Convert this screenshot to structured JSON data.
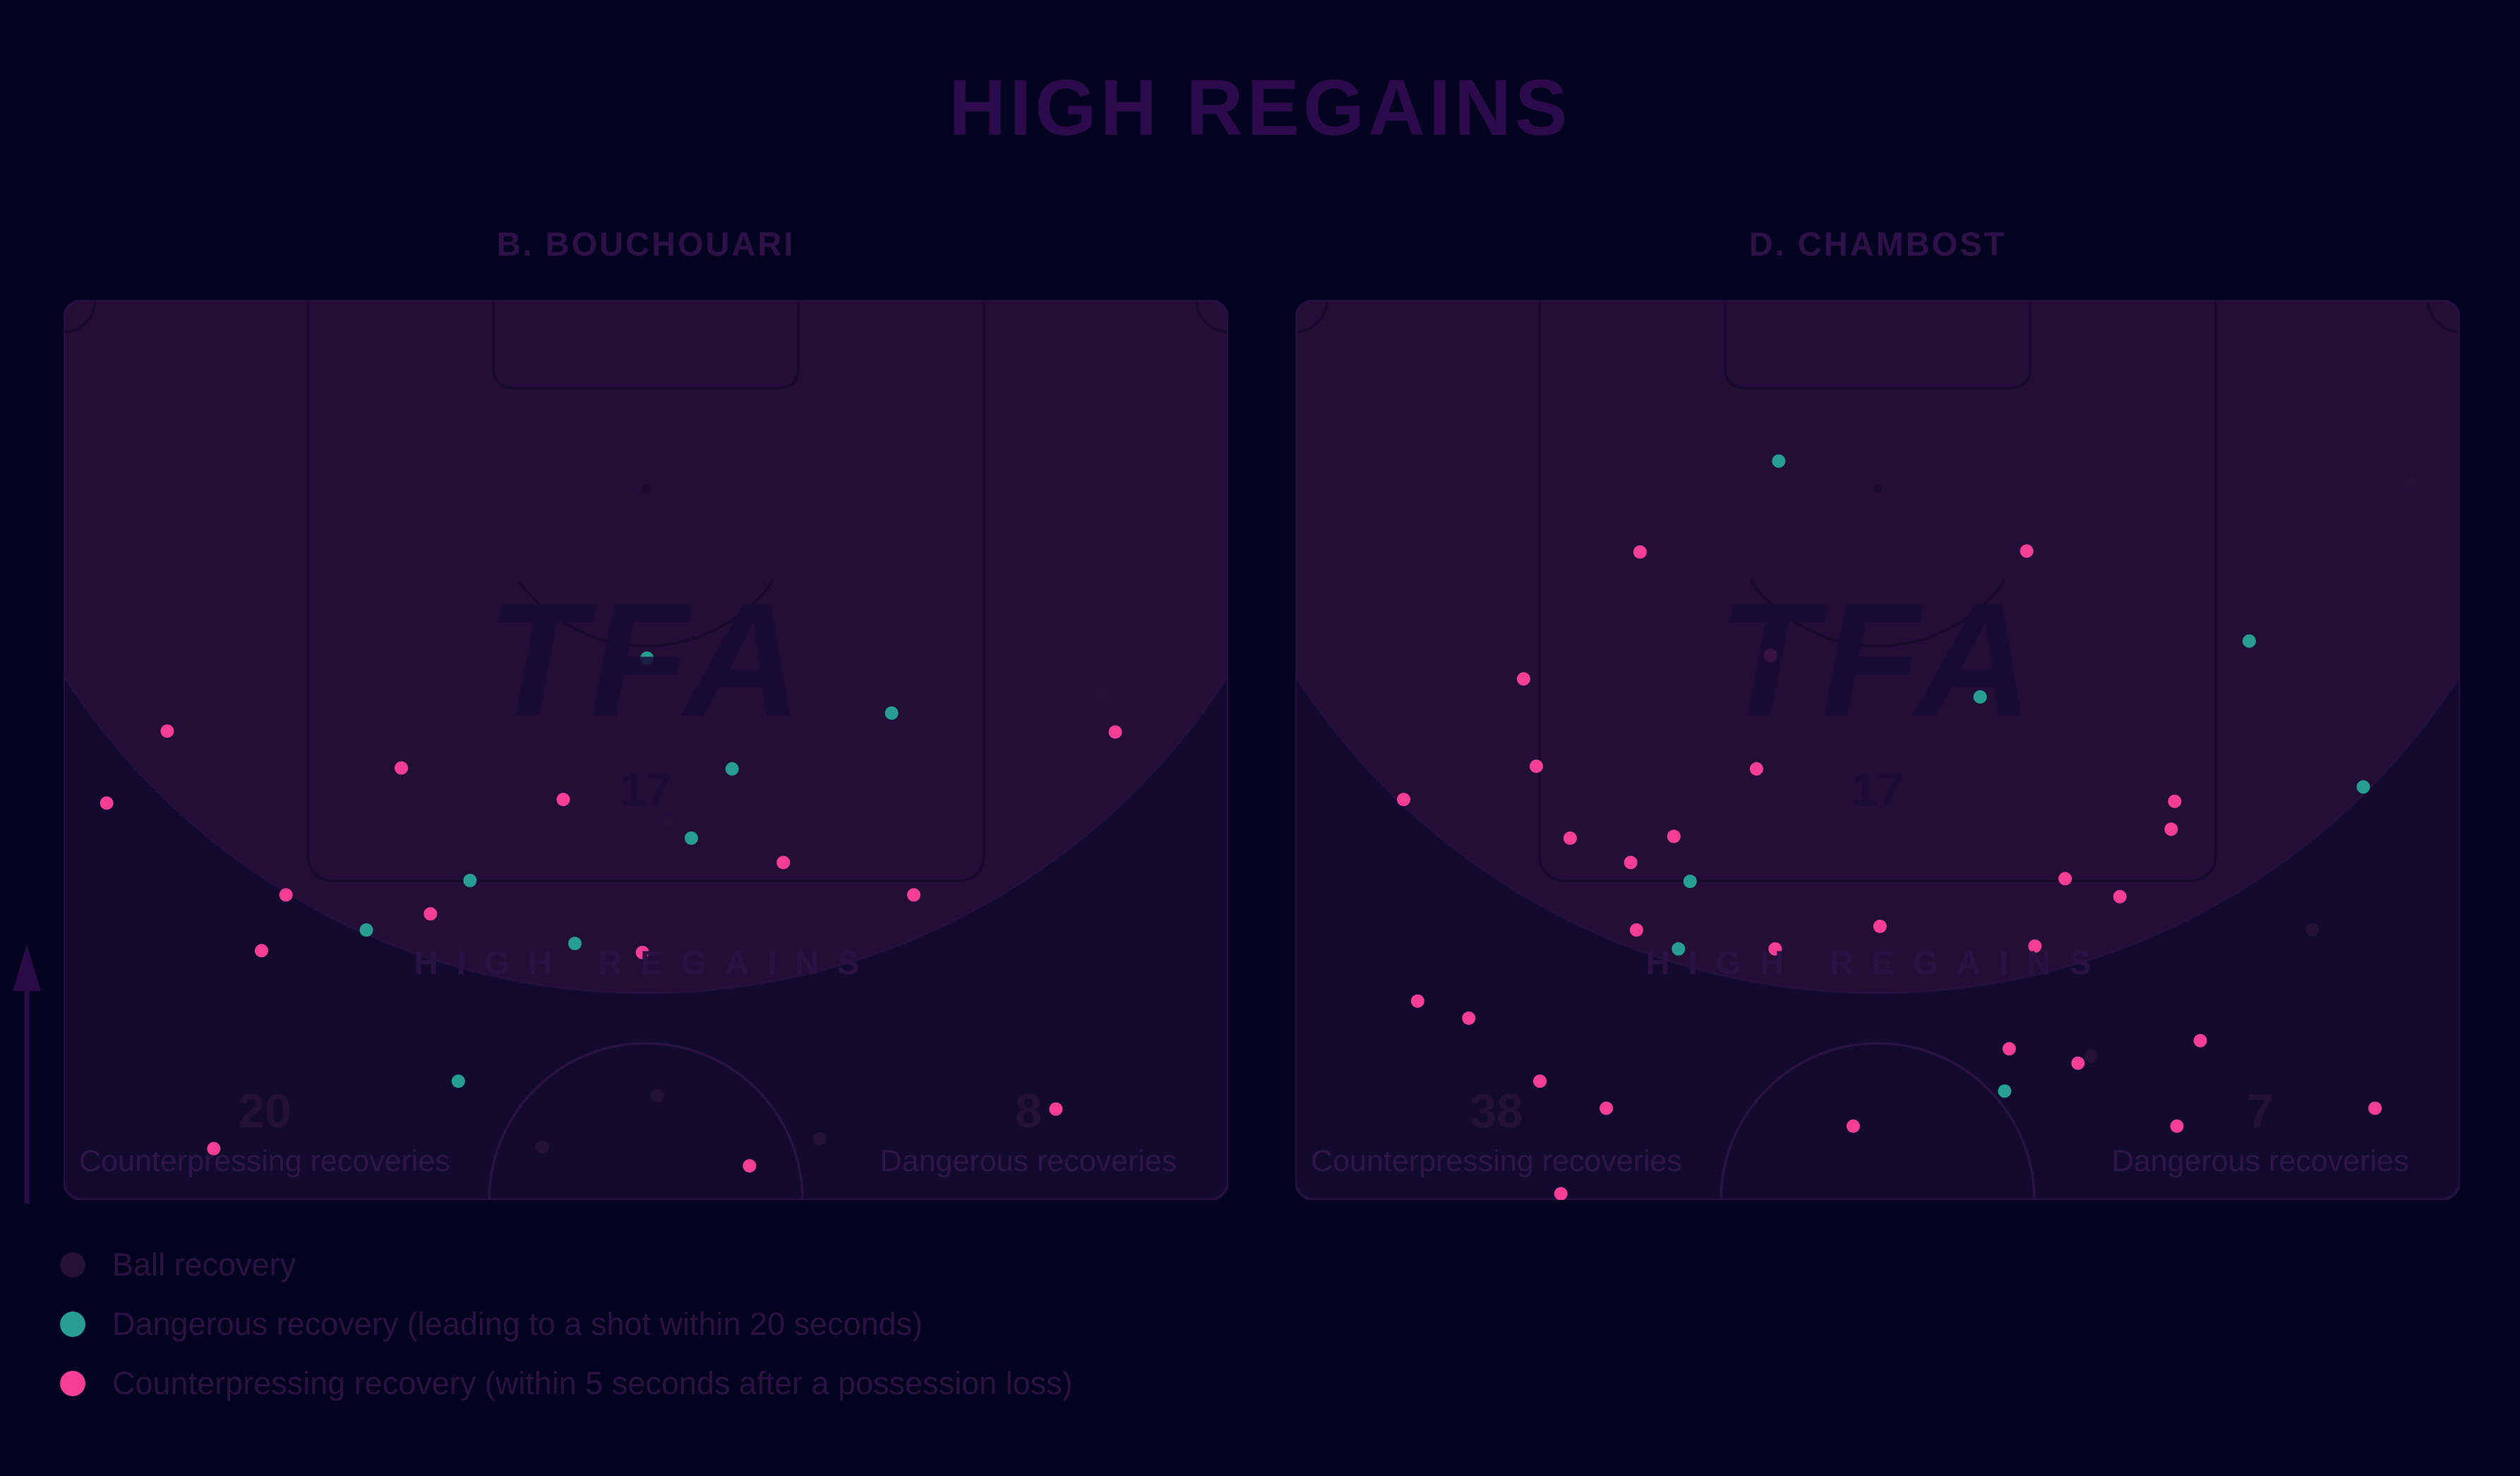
{
  "title": "HIGH REGAINS",
  "colors": {
    "background": "#050420",
    "pitch_base": "#120b2f",
    "high_zone_fill": "#230e37",
    "pitch_line_dark": "#170a2b",
    "pitch_line_light": "#2a1343",
    "ball": "#231136",
    "dangerous": "#279e92",
    "counterpressing": "#f43e96",
    "title_text": "#2d0a4b"
  },
  "legend": {
    "items": [
      {
        "type": "ball",
        "label": "Ball recovery"
      },
      {
        "type": "dangerous",
        "label": "Dangerous recovery (leading to a shot within 20 seconds)"
      },
      {
        "type": "counterpressing",
        "label": "Counterpressing recovery (within 5 seconds after a possession loss)"
      }
    ]
  },
  "watermark": {
    "logo": "TFA",
    "sub": "17",
    "zone_label": "HIGH REGAINS"
  },
  "chart_data": {
    "type": "scatter",
    "units": "percent of attacking half-pitch; x: 0=left touchline to 100=right touchline; y: 0=opponent goal line to 100=halfway line",
    "pitches": [
      {
        "player": "B. BOUCHOUARI",
        "stats": {
          "counterpressing": {
            "value": "20",
            "label": "Counterpressing recoveries"
          },
          "dangerous": {
            "value": "8",
            "label": "Dangerous recoveries"
          }
        },
        "dots": [
          {
            "x": 50.1,
            "y": 39.8,
            "type": "dangerous"
          },
          {
            "x": 71.1,
            "y": 45.9,
            "type": "dangerous"
          },
          {
            "x": 57.4,
            "y": 52.1,
            "type": "dangerous"
          },
          {
            "x": 53.9,
            "y": 59.8,
            "type": "dangerous"
          },
          {
            "x": 34.9,
            "y": 64.5,
            "type": "dangerous"
          },
          {
            "x": 26.0,
            "y": 70.0,
            "type": "dangerous"
          },
          {
            "x": 43.9,
            "y": 71.5,
            "type": "dangerous"
          },
          {
            "x": 33.9,
            "y": 86.8,
            "type": "dangerous"
          },
          {
            "x": 8.9,
            "y": 47.9,
            "type": "counterpressing"
          },
          {
            "x": 29.0,
            "y": 52.0,
            "type": "counterpressing"
          },
          {
            "x": 90.3,
            "y": 48.0,
            "type": "counterpressing"
          },
          {
            "x": 3.7,
            "y": 55.9,
            "type": "counterpressing"
          },
          {
            "x": 42.9,
            "y": 55.5,
            "type": "counterpressing"
          },
          {
            "x": 61.8,
            "y": 62.5,
            "type": "counterpressing"
          },
          {
            "x": 73.0,
            "y": 66.1,
            "type": "counterpressing"
          },
          {
            "x": 19.1,
            "y": 66.1,
            "type": "counterpressing"
          },
          {
            "x": 31.5,
            "y": 68.2,
            "type": "counterpressing"
          },
          {
            "x": 17.0,
            "y": 72.3,
            "type": "counterpressing"
          },
          {
            "x": 49.7,
            "y": 72.5,
            "type": "counterpressing"
          },
          {
            "x": 12.9,
            "y": 94.3,
            "type": "counterpressing"
          },
          {
            "x": 58.9,
            "y": 96.2,
            "type": "counterpressing"
          },
          {
            "x": 85.2,
            "y": 89.9,
            "type": "counterpressing"
          },
          {
            "x": 52.0,
            "y": 58.0,
            "type": "ball"
          },
          {
            "x": 89.1,
            "y": 43.9,
            "type": "ball"
          },
          {
            "x": 51.0,
            "y": 88.4,
            "type": "ball"
          },
          {
            "x": 41.1,
            "y": 94.1,
            "type": "ball"
          },
          {
            "x": 64.9,
            "y": 93.2,
            "type": "ball"
          }
        ]
      },
      {
        "player": "D. CHAMBOST",
        "stats": {
          "counterpressing": {
            "value": "38",
            "label": "Counterpressing recoveries"
          },
          "dangerous": {
            "value": "7",
            "label": "Dangerous recoveries"
          }
        },
        "dots": [
          {
            "x": 41.5,
            "y": 17.9,
            "type": "dangerous"
          },
          {
            "x": 81.9,
            "y": 37.9,
            "type": "dangerous"
          },
          {
            "x": 58.8,
            "y": 44.1,
            "type": "dangerous"
          },
          {
            "x": 91.7,
            "y": 54.1,
            "type": "dangerous"
          },
          {
            "x": 33.9,
            "y": 64.6,
            "type": "dangerous"
          },
          {
            "x": 32.9,
            "y": 72.1,
            "type": "dangerous"
          },
          {
            "x": 60.9,
            "y": 87.9,
            "type": "dangerous"
          },
          {
            "x": 29.6,
            "y": 28.0,
            "type": "counterpressing"
          },
          {
            "x": 62.8,
            "y": 27.9,
            "type": "counterpressing"
          },
          {
            "x": 40.8,
            "y": 39.5,
            "type": "counterpressing"
          },
          {
            "x": 19.6,
            "y": 42.1,
            "type": "counterpressing"
          },
          {
            "x": 20.7,
            "y": 51.8,
            "type": "counterpressing"
          },
          {
            "x": 39.6,
            "y": 52.1,
            "type": "counterpressing"
          },
          {
            "x": 9.3,
            "y": 55.5,
            "type": "counterpressing"
          },
          {
            "x": 23.6,
            "y": 59.8,
            "type": "counterpressing"
          },
          {
            "x": 32.5,
            "y": 59.6,
            "type": "counterpressing"
          },
          {
            "x": 75.5,
            "y": 55.7,
            "type": "counterpressing"
          },
          {
            "x": 75.2,
            "y": 58.8,
            "type": "counterpressing"
          },
          {
            "x": 66.1,
            "y": 64.3,
            "type": "counterpressing"
          },
          {
            "x": 70.8,
            "y": 66.3,
            "type": "counterpressing"
          },
          {
            "x": 28.8,
            "y": 62.5,
            "type": "counterpressing"
          },
          {
            "x": 29.3,
            "y": 70.0,
            "type": "counterpressing"
          },
          {
            "x": 41.2,
            "y": 72.1,
            "type": "counterpressing"
          },
          {
            "x": 50.2,
            "y": 69.6,
            "type": "counterpressing"
          },
          {
            "x": 63.5,
            "y": 71.8,
            "type": "counterpressing"
          },
          {
            "x": 10.5,
            "y": 77.9,
            "type": "counterpressing"
          },
          {
            "x": 14.9,
            "y": 79.8,
            "type": "counterpressing"
          },
          {
            "x": 61.3,
            "y": 83.2,
            "type": "counterpressing"
          },
          {
            "x": 67.2,
            "y": 84.8,
            "type": "counterpressing"
          },
          {
            "x": 77.7,
            "y": 82.3,
            "type": "counterpressing"
          },
          {
            "x": 21.0,
            "y": 86.8,
            "type": "counterpressing"
          },
          {
            "x": 26.7,
            "y": 89.8,
            "type": "counterpressing"
          },
          {
            "x": 47.9,
            "y": 91.8,
            "type": "counterpressing"
          },
          {
            "x": 92.7,
            "y": 89.8,
            "type": "counterpressing"
          },
          {
            "x": 75.7,
            "y": 91.8,
            "type": "counterpressing"
          },
          {
            "x": 22.8,
            "y": 99.3,
            "type": "counterpressing"
          },
          {
            "x": 95.7,
            "y": 20.2,
            "type": "ball"
          },
          {
            "x": 87.3,
            "y": 70.0,
            "type": "ball"
          },
          {
            "x": 50.6,
            "y": 73.9,
            "type": "ball"
          },
          {
            "x": 68.3,
            "y": 84.0,
            "type": "ball"
          }
        ]
      }
    ]
  }
}
